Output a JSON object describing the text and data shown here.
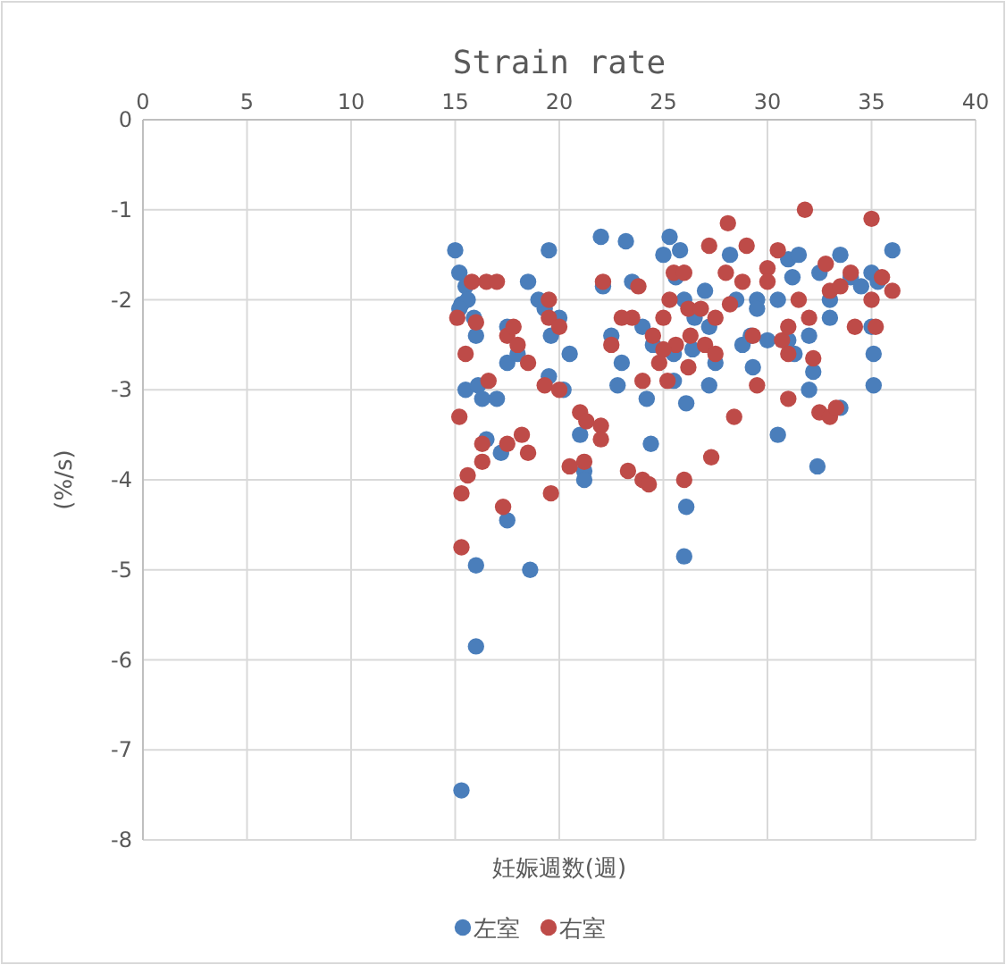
{
  "chart_data": {
    "type": "scatter",
    "title": "Strain rate",
    "xlabel": "妊娠週数(週)",
    "ylabel": "(%/s)",
    "xlim": [
      0,
      40
    ],
    "ylim": [
      -8,
      0
    ],
    "xticks": [
      0,
      5,
      10,
      15,
      20,
      25,
      30,
      35,
      40
    ],
    "yticks": [
      -8,
      -7,
      -6,
      -5,
      -4,
      -3,
      -2,
      -1,
      0
    ],
    "grid": true,
    "legend": "bottom",
    "marker": "circle",
    "series": [
      {
        "name": "左室",
        "color": "#4a7ebb",
        "x": [
          15,
          15.2,
          15.3,
          15.5,
          15.6,
          15.2,
          15.9,
          15.5,
          16,
          16.1,
          16.3,
          17,
          17.5,
          18,
          16.5,
          17.2,
          17.5,
          16,
          18.6,
          16,
          15.3,
          18.5,
          19.3,
          19.5,
          19.6,
          20,
          19.5,
          20.5,
          21,
          21.2,
          21.2,
          22,
          23.2,
          22.1,
          22.5,
          22.8,
          23.5,
          24,
          24.5,
          24.2,
          24.4,
          25,
          25.3,
          25.6,
          25.8,
          26,
          25.5,
          25.5,
          26.5,
          26.4,
          26.1,
          26.1,
          26,
          27,
          27.2,
          27.5,
          27.2,
          28.2,
          28.5,
          29.2,
          29.3,
          29.5,
          30.5,
          30.5,
          31,
          31.2,
          31.5,
          31,
          31.3,
          32,
          32.5,
          32,
          32.2,
          32.4,
          33,
          33,
          33.5,
          34,
          34.5,
          35,
          35.3,
          35,
          35.1,
          35.1,
          36,
          33.5,
          29.5,
          30,
          28.8,
          23,
          20.2,
          17.5,
          19
        ],
        "values": [
          -1.45,
          -1.7,
          -2.05,
          -1.85,
          -2,
          -2.1,
          -2.2,
          -3,
          -2.4,
          -2.95,
          -3.1,
          -3.1,
          -2.7,
          -2.6,
          -3.55,
          -3.7,
          -4.45,
          -4.95,
          -5,
          -5.85,
          -7.45,
          -1.8,
          -2.1,
          -1.45,
          -2.4,
          -2.2,
          -2.85,
          -2.6,
          -3.5,
          -3.9,
          -4,
          -1.3,
          -1.35,
          -1.85,
          -2.4,
          -2.95,
          -1.8,
          -2.3,
          -2.5,
          -3.1,
          -3.6,
          -1.5,
          -1.3,
          -1.75,
          -1.45,
          -2,
          -2.6,
          -2.9,
          -2.2,
          -2.55,
          -3.15,
          -4.3,
          -4.85,
          -1.9,
          -2.3,
          -2.7,
          -2.95,
          -1.5,
          -2,
          -2.4,
          -2.75,
          -2,
          -2,
          -3.5,
          -1.55,
          -1.75,
          -1.5,
          -2.45,
          -2.6,
          -2.4,
          -1.7,
          -3,
          -2.8,
          -3.85,
          -2.2,
          -2,
          -1.5,
          -1.75,
          -1.85,
          -1.7,
          -1.8,
          -2.3,
          -2.6,
          -2.95,
          -1.45,
          -3.2,
          -2.1,
          -2.45,
          -2.5,
          -2.7,
          -3,
          -2.3,
          -2
        ]
      },
      {
        "name": "右室",
        "color": "#be4b48",
        "x": [
          15.1,
          15.2,
          15.3,
          15.3,
          15.6,
          15.5,
          15.8,
          16.5,
          16,
          16.3,
          16.3,
          16.6,
          17,
          17.5,
          17.8,
          17.5,
          17.3,
          18.5,
          18.2,
          18.5,
          19.3,
          19.5,
          19.5,
          19.6,
          20,
          20,
          20.5,
          21,
          21.3,
          21.2,
          22,
          22,
          22.1,
          22.5,
          23.3,
          23.5,
          23.8,
          24,
          24,
          24.3,
          24.5,
          24.8,
          25,
          25.3,
          25.5,
          25.6,
          25.2,
          25,
          26,
          26.2,
          26.3,
          26,
          26.2,
          26.8,
          27,
          27.2,
          27.5,
          27.3,
          27.5,
          28.1,
          28,
          28.2,
          28.4,
          28.8,
          29,
          29.3,
          29.5,
          30,
          30,
          30.5,
          30.7,
          31,
          31,
          31,
          31.5,
          31.8,
          32,
          32.2,
          32.5,
          32.8,
          33,
          33,
          33.3,
          33.5,
          34,
          34.2,
          35,
          35,
          35.2,
          35.5,
          36,
          23,
          18
        ],
        "values": [
          -2.2,
          -3.3,
          -4.15,
          -4.75,
          -3.95,
          -2.6,
          -1.8,
          -1.8,
          -2.25,
          -3.6,
          -3.8,
          -2.9,
          -1.8,
          -2.4,
          -2.3,
          -3.6,
          -4.3,
          -2.7,
          -3.5,
          -3.7,
          -2.95,
          -2,
          -2.2,
          -4.15,
          -2.3,
          -3,
          -3.85,
          -3.25,
          -3.35,
          -3.8,
          -3.4,
          -3.55,
          -1.8,
          -2.5,
          -3.9,
          -2.2,
          -1.85,
          -2.9,
          -4,
          -4.05,
          -2.4,
          -2.7,
          -2.2,
          -2,
          -1.7,
          -2.5,
          -2.9,
          -2.55,
          -1.7,
          -2.1,
          -2.4,
          -4,
          -2.75,
          -2.1,
          -2.5,
          -1.4,
          -2.2,
          -3.75,
          -2.6,
          -1.15,
          -1.7,
          -2.05,
          -3.3,
          -1.8,
          -1.4,
          -2.4,
          -2.95,
          -1.65,
          -1.8,
          -1.45,
          -2.45,
          -2.3,
          -2.6,
          -3.1,
          -2,
          -1,
          -2.2,
          -2.65,
          -3.25,
          -1.6,
          -1.9,
          -3.3,
          -3.2,
          -1.85,
          -1.7,
          -2.3,
          -1.1,
          -2,
          -2.3,
          -1.75,
          -1.9,
          -2.2,
          -2.5
        ]
      }
    ]
  }
}
